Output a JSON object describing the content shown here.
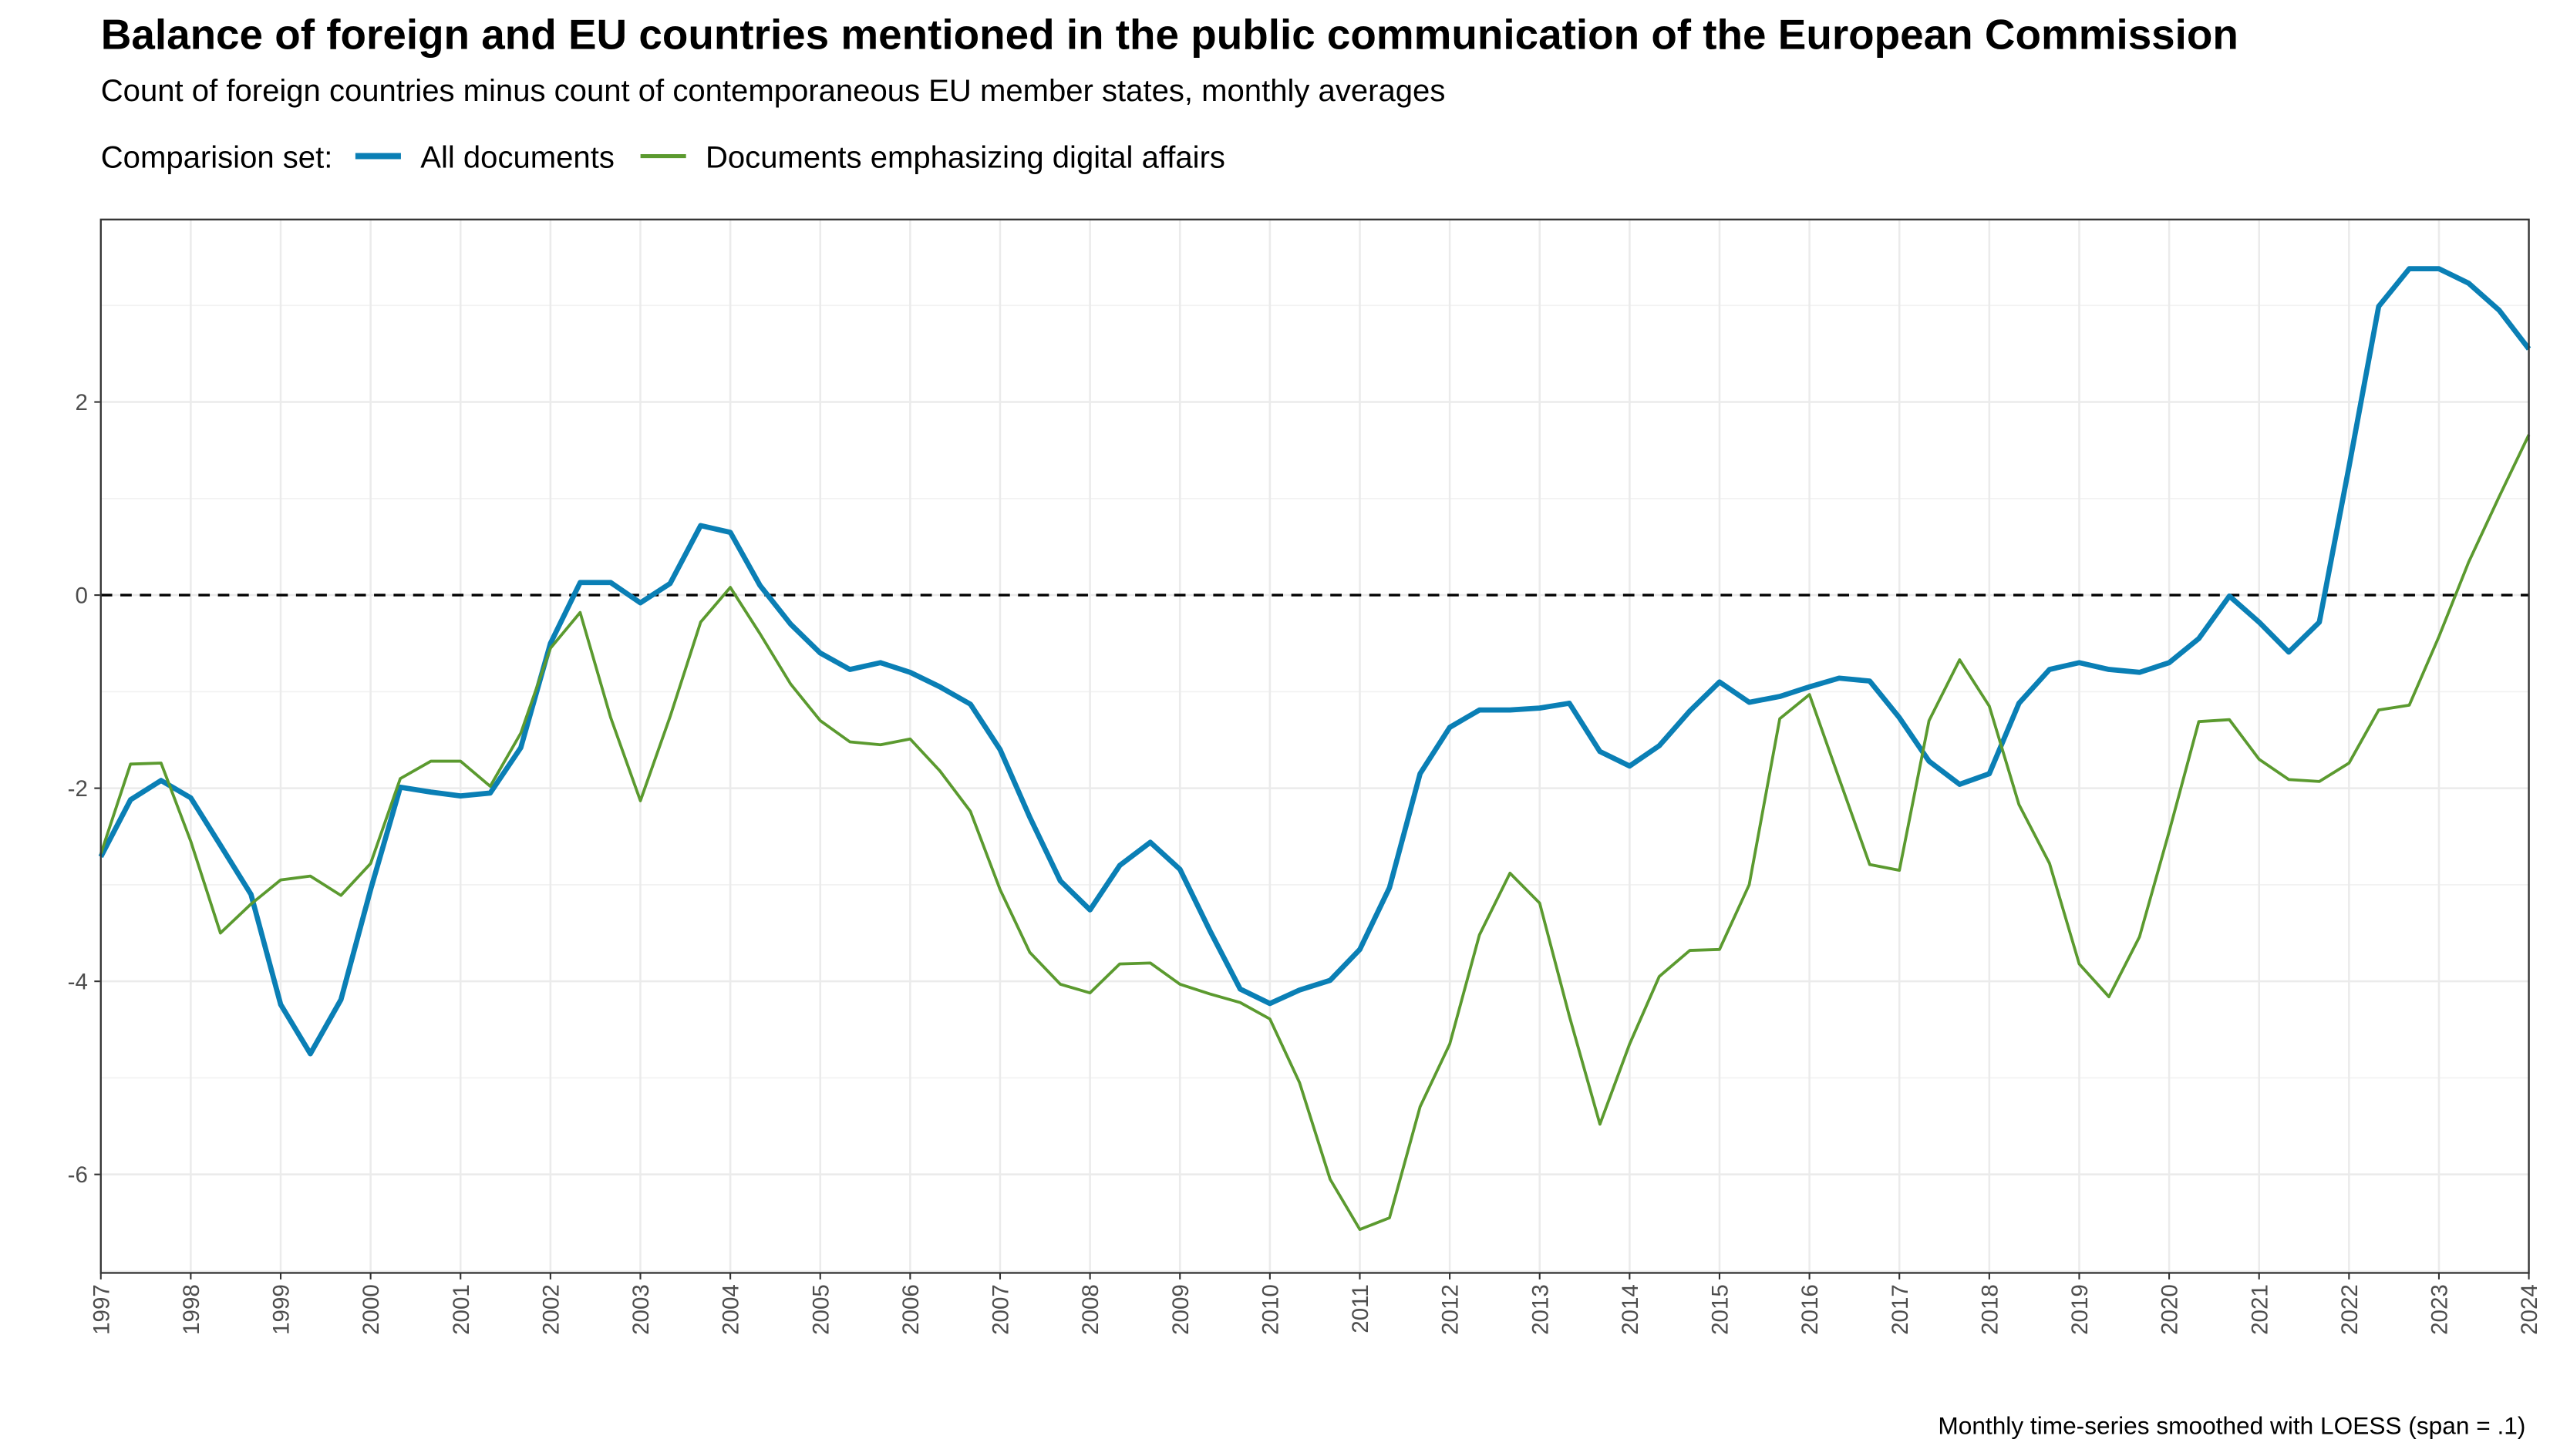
{
  "chart_data": {
    "type": "line",
    "title": "Balance of foreign and EU countries mentioned in the public communication of the European Commission",
    "subtitle": "Count of foreign countries minus count of contemporaneous EU member states, monthly averages",
    "legend_title": "Comparision set:",
    "legend_position": "top",
    "caption": "Monthly time-series smoothed with LOESS (span = .1)",
    "grid": true,
    "reference_line": 0,
    "x": [
      1997,
      1997.33,
      1997.67,
      1998,
      1998.33,
      1998.67,
      1999,
      1999.33,
      1999.67,
      2000,
      2000.33,
      2000.67,
      2001,
      2001.33,
      2001.67,
      2002,
      2002.33,
      2002.67,
      2003,
      2003.33,
      2003.67,
      2004,
      2004.33,
      2004.67,
      2005,
      2005.33,
      2005.67,
      2006,
      2006.33,
      2006.67,
      2007,
      2007.33,
      2007.67,
      2008,
      2008.33,
      2008.67,
      2009,
      2009.33,
      2009.67,
      2010,
      2010.33,
      2010.67,
      2011,
      2011.33,
      2011.67,
      2012,
      2012.33,
      2012.67,
      2013,
      2013.33,
      2013.67,
      2014,
      2014.33,
      2014.67,
      2015,
      2015.33,
      2015.67,
      2016,
      2016.33,
      2016.67,
      2017,
      2017.33,
      2017.67,
      2018,
      2018.33,
      2018.67,
      2019,
      2019.33,
      2019.67,
      2020,
      2020.33,
      2020.67,
      2021,
      2021.33,
      2021.67,
      2022,
      2022.33,
      2022.67,
      2023,
      2023.33,
      2023.67,
      2024
    ],
    "series": [
      {
        "name": "All documents",
        "color": "#0a7fb5",
        "width": 3.2,
        "values": [
          -2.71,
          -2.12,
          -1.92,
          -2.1,
          -2.59,
          -3.1,
          -4.24,
          -4.75,
          -4.19,
          -3.05,
          -1.99,
          -2.04,
          -2.08,
          -2.05,
          -1.58,
          -0.5,
          0.13,
          0.13,
          -0.08,
          0.12,
          0.72,
          0.65,
          0.1,
          -0.3,
          -0.6,
          -0.77,
          -0.7,
          -0.8,
          -0.95,
          -1.13,
          -1.6,
          -2.3,
          -2.96,
          -3.26,
          -2.8,
          -2.56,
          -2.84,
          -3.47,
          -4.08,
          -4.23,
          -4.09,
          -3.99,
          -3.67,
          -3.03,
          -1.85,
          -1.37,
          -1.19,
          -1.19,
          -1.17,
          -1.12,
          -1.62,
          -1.77,
          -1.56,
          -1.2,
          -0.9,
          -1.11,
          -1.05,
          -0.95,
          -0.86,
          -0.89,
          -1.27,
          -1.72,
          -1.96,
          -1.85,
          -1.12,
          -0.77,
          -0.7,
          -0.77,
          -0.8,
          -0.7,
          -0.45,
          -0.01,
          -0.28,
          -0.59,
          -0.28,
          1.33,
          2.99,
          3.38,
          3.38,
          3.23,
          2.95,
          2.55
        ]
      },
      {
        "name": "Documents emphasizing digital affairs",
        "color": "#5b9a2f",
        "width": 1.8,
        "values": [
          -2.68,
          -1.75,
          -1.74,
          -2.55,
          -3.5,
          -3.2,
          -2.95,
          -2.91,
          -3.11,
          -2.78,
          -1.9,
          -1.72,
          -1.72,
          -1.98,
          -1.43,
          -0.55,
          -0.18,
          -1.27,
          -2.13,
          -1.26,
          -0.28,
          0.08,
          -0.4,
          -0.92,
          -1.3,
          -1.52,
          -1.55,
          -1.49,
          -1.82,
          -2.24,
          -3.05,
          -3.7,
          -4.03,
          -4.12,
          -3.82,
          -3.81,
          -4.03,
          -4.13,
          -4.22,
          -4.39,
          -5.05,
          -6.05,
          -6.57,
          -6.45,
          -5.3,
          -4.65,
          -3.52,
          -2.88,
          -3.19,
          -4.36,
          -5.48,
          -4.65,
          -3.95,
          -3.68,
          -3.67,
          -3.0,
          -1.28,
          -1.03,
          -1.9,
          -2.79,
          -2.85,
          -1.3,
          -0.67,
          -1.15,
          -2.17,
          -2.78,
          -3.82,
          -4.16,
          -3.54,
          -2.45,
          -1.31,
          -1.29,
          -1.7,
          -1.91,
          -1.93,
          -1.74,
          -1.19,
          -1.14,
          -0.43,
          0.34,
          1.02,
          1.66
        ]
      }
    ],
    "xlim": [
      1997,
      2024
    ],
    "xticks": [
      1997,
      1998,
      1999,
      2000,
      2001,
      2002,
      2003,
      2004,
      2005,
      2006,
      2007,
      2008,
      2009,
      2010,
      2011,
      2012,
      2013,
      2014,
      2015,
      2016,
      2017,
      2018,
      2019,
      2020,
      2021,
      2022,
      2023,
      2024
    ],
    "ylim": [
      -7.02,
      3.89
    ],
    "yticks": [
      -6,
      -4,
      -2,
      0,
      2
    ]
  }
}
